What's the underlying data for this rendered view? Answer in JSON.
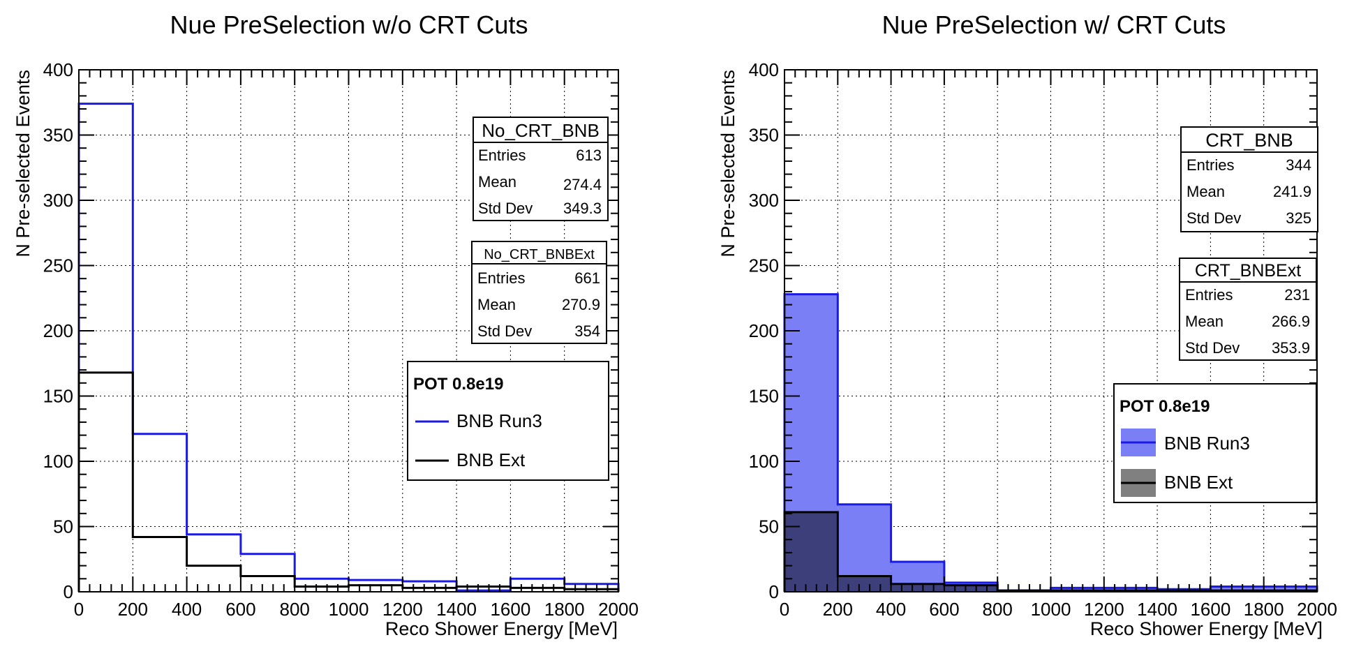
{
  "chart_data": [
    {
      "type": "histogram",
      "title": "Nue PreSelection w/o CRT Cuts",
      "xlabel": "Reco Shower Energy [MeV]",
      "ylabel": "N Pre-selected Events",
      "xlim": [
        0,
        2000
      ],
      "ylim": [
        0,
        400
      ],
      "xticks": [
        "0",
        "200",
        "400",
        "600",
        "800",
        "1000",
        "1200",
        "1400",
        "1600",
        "1800",
        "2000"
      ],
      "yticks": [
        "0",
        "50",
        "100",
        "150",
        "200",
        "250",
        "300",
        "350",
        "400"
      ],
      "grid": true,
      "bin_edges": [
        0,
        200,
        400,
        600,
        800,
        1000,
        1200,
        1400,
        1600,
        1800,
        2000
      ],
      "series": [
        {
          "name": "BNB Run3",
          "color": "#1a1ae6",
          "filled": false,
          "values": [
            374,
            121,
            44,
            29,
            10,
            9,
            8,
            1,
            10,
            6
          ]
        },
        {
          "name": "BNB Ext",
          "color": "#000000",
          "filled": false,
          "values": [
            168,
            42,
            20,
            12,
            4,
            5,
            3,
            4,
            3,
            2
          ]
        }
      ],
      "stats_boxes": [
        {
          "name": "No_CRT_BNB",
          "rows": [
            {
              "label": "Entries",
              "value": "613"
            },
            {
              "label": "Mean",
              "value": "274.4"
            },
            {
              "label": "Std Dev",
              "value": "349.3"
            }
          ]
        },
        {
          "name": "No_CRT_BNBExt",
          "rows": [
            {
              "label": "Entries",
              "value": "661"
            },
            {
              "label": "Mean",
              "value": "270.9"
            },
            {
              "label": "Std Dev",
              "value": "354"
            }
          ]
        }
      ],
      "legend": {
        "header": "POT 0.8e19",
        "placement": "right-middle"
      }
    },
    {
      "type": "histogram",
      "title": "Nue PreSelection w/ CRT Cuts",
      "xlabel": "Reco Shower Energy [MeV]",
      "ylabel": "N Pre-selected Events",
      "xlim": [
        0,
        2000
      ],
      "ylim": [
        0,
        400
      ],
      "xticks": [
        "0",
        "200",
        "400",
        "600",
        "800",
        "1000",
        "1200",
        "1400",
        "1600",
        "1800",
        "2000"
      ],
      "yticks": [
        "0",
        "50",
        "100",
        "150",
        "200",
        "250",
        "300",
        "350",
        "400"
      ],
      "grid": true,
      "bin_edges": [
        0,
        200,
        400,
        600,
        800,
        1000,
        1200,
        1400,
        1600,
        1800,
        2000
      ],
      "series": [
        {
          "name": "BNB Run3",
          "color": "#1a1ae6",
          "fill": "#7b7ff5",
          "filled": true,
          "values": [
            228,
            67,
            23,
            7,
            1,
            3,
            3,
            2,
            4,
            4
          ]
        },
        {
          "name": "BNB Ext",
          "color": "#000000",
          "fill": "rgba(0,0,0,0.5)",
          "filled": true,
          "values": [
            61,
            12,
            6,
            5,
            1,
            1,
            1,
            1,
            1,
            1
          ]
        }
      ],
      "stats_boxes": [
        {
          "name": "CRT_BNB",
          "rows": [
            {
              "label": "Entries",
              "value": "344"
            },
            {
              "label": "Mean",
              "value": "241.9"
            },
            {
              "label": "Std Dev",
              "value": "325"
            }
          ]
        },
        {
          "name": "CRT_BNBExt",
          "rows": [
            {
              "label": "Entries",
              "value": "231"
            },
            {
              "label": "Mean",
              "value": "266.9"
            },
            {
              "label": "Std Dev",
              "value": "353.9"
            }
          ]
        }
      ],
      "legend": {
        "header": "POT 0.8e19",
        "placement": "right-middle"
      }
    }
  ]
}
